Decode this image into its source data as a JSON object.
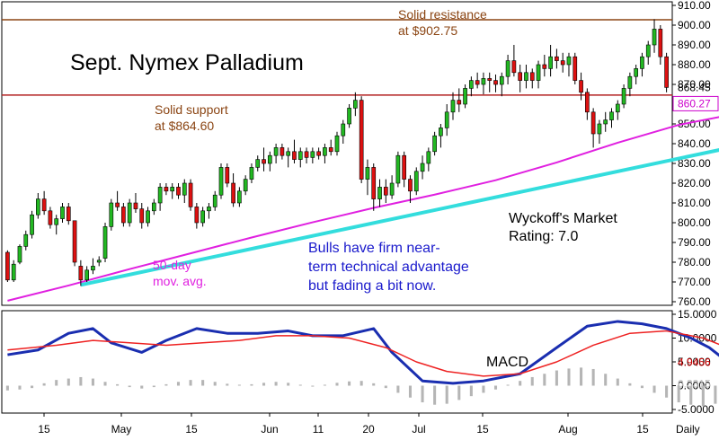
{
  "chart_data": [
    {
      "type": "candlestick",
      "title": "Sept. Nymex Palladium",
      "frequency_label": "Daily",
      "ylim": [
        760,
        910
      ],
      "yticks": [
        "760.00",
        "770.00",
        "780.00",
        "790.00",
        "800.00",
        "810.00",
        "820.00",
        "830.00",
        "840.00",
        "850.00",
        "860.00",
        "870.00",
        "880.00",
        "890.00",
        "900.00",
        "910.00"
      ],
      "x_tick_labels": [
        "15",
        "May",
        "15",
        "Jun",
        "11",
        "20",
        "Jul",
        "15",
        "Aug",
        "15"
      ],
      "price_tags": [
        {
          "label": "868.45",
          "value": 868.45,
          "color": "#000000",
          "boxed": false
        },
        {
          "label": "860.27",
          "value": 860.27,
          "color": "#cc00cc",
          "boxed": true
        }
      ],
      "annotations": {
        "resistance_line1": "Solid resistance",
        "resistance_line2": "at $902.75",
        "support_line1": "Solid support",
        "support_line2": "at $864.60",
        "ma_line1": "50-day",
        "ma_line2": "mov. avg.",
        "comment_line1": "Bulls have firm near-",
        "comment_line2": "term technical advantage",
        "comment_line3": "but fading a bit now.",
        "rating_line1": "Wyckoff's Market",
        "rating_line2": "Rating: 7.0"
      },
      "horizontal_lines": [
        {
          "name": "resistance",
          "value": 902.75,
          "color": "#8b4513"
        },
        {
          "name": "support",
          "value": 864.6,
          "color": "#b22222"
        }
      ],
      "series": [
        {
          "name": "50-day mov. avg.",
          "color": "#e020e0",
          "x": [
            0,
            10,
            20,
            30,
            40,
            50,
            60,
            70,
            80,
            90,
            100,
            110,
            120,
            133
          ],
          "y": [
            760.5,
            768.2,
            776.5,
            784.5,
            792.5,
            800.2,
            807.5,
            814.2,
            821.5,
            830.5,
            840.5,
            849.5,
            855.5,
            860.27
          ]
        },
        {
          "name": "uptrend line",
          "color": "#33dddd",
          "x": [
            12,
            133
          ],
          "y": [
            768.5,
            847.5
          ]
        }
      ],
      "candles": [
        {
          "o": 785,
          "h": 786,
          "l": 770,
          "c": 771
        },
        {
          "o": 771,
          "h": 781,
          "l": 770,
          "c": 779
        },
        {
          "o": 780,
          "h": 789,
          "l": 779,
          "c": 788
        },
        {
          "o": 788,
          "h": 796,
          "l": 786,
          "c": 794
        },
        {
          "o": 794,
          "h": 806,
          "l": 792,
          "c": 804
        },
        {
          "o": 804,
          "h": 815,
          "l": 802,
          "c": 812
        },
        {
          "o": 812,
          "h": 816,
          "l": 804,
          "c": 806
        },
        {
          "o": 806,
          "h": 808,
          "l": 797,
          "c": 799
        },
        {
          "o": 799,
          "h": 804,
          "l": 794,
          "c": 802
        },
        {
          "o": 802,
          "h": 810,
          "l": 800,
          "c": 808
        },
        {
          "o": 808,
          "h": 810,
          "l": 799,
          "c": 801
        },
        {
          "o": 801,
          "h": 800,
          "l": 778,
          "c": 780
        },
        {
          "o": 778,
          "h": 781,
          "l": 768,
          "c": 771
        },
        {
          "o": 771,
          "h": 778,
          "l": 770,
          "c": 776
        },
        {
          "o": 776,
          "h": 782,
          "l": 774,
          "c": 778
        },
        {
          "o": 780,
          "h": 783,
          "l": 778,
          "c": 781
        },
        {
          "o": 782,
          "h": 800,
          "l": 780,
          "c": 798
        },
        {
          "o": 798,
          "h": 812,
          "l": 796,
          "c": 810
        },
        {
          "o": 810,
          "h": 816,
          "l": 806,
          "c": 808
        },
        {
          "o": 808,
          "h": 810,
          "l": 798,
          "c": 800
        },
        {
          "o": 800,
          "h": 812,
          "l": 798,
          "c": 810
        },
        {
          "o": 810,
          "h": 815,
          "l": 805,
          "c": 807
        },
        {
          "o": 807,
          "h": 810,
          "l": 797,
          "c": 800
        },
        {
          "o": 800,
          "h": 808,
          "l": 798,
          "c": 806
        },
        {
          "o": 806,
          "h": 812,
          "l": 804,
          "c": 810
        },
        {
          "o": 810,
          "h": 820,
          "l": 806,
          "c": 818
        },
        {
          "o": 818,
          "h": 820,
          "l": 814,
          "c": 816
        },
        {
          "o": 816,
          "h": 820,
          "l": 812,
          "c": 818
        },
        {
          "o": 818,
          "h": 820,
          "l": 812,
          "c": 814
        },
        {
          "o": 814,
          "h": 822,
          "l": 810,
          "c": 820
        },
        {
          "o": 820,
          "h": 822,
          "l": 806,
          "c": 808
        },
        {
          "o": 808,
          "h": 810,
          "l": 797,
          "c": 800
        },
        {
          "o": 800,
          "h": 808,
          "l": 798,
          "c": 806
        },
        {
          "o": 806,
          "h": 810,
          "l": 802,
          "c": 808
        },
        {
          "o": 808,
          "h": 816,
          "l": 806,
          "c": 814
        },
        {
          "o": 814,
          "h": 830,
          "l": 812,
          "c": 828
        },
        {
          "o": 828,
          "h": 830,
          "l": 818,
          "c": 820
        },
        {
          "o": 820,
          "h": 825,
          "l": 808,
          "c": 810
        },
        {
          "o": 810,
          "h": 818,
          "l": 808,
          "c": 816
        },
        {
          "o": 816,
          "h": 824,
          "l": 814,
          "c": 822
        },
        {
          "o": 822,
          "h": 830,
          "l": 820,
          "c": 828
        },
        {
          "o": 828,
          "h": 834,
          "l": 826,
          "c": 832
        },
        {
          "o": 832,
          "h": 838,
          "l": 826,
          "c": 830
        },
        {
          "o": 830,
          "h": 836,
          "l": 826,
          "c": 834
        },
        {
          "o": 834,
          "h": 840,
          "l": 830,
          "c": 838
        },
        {
          "o": 838,
          "h": 840,
          "l": 832,
          "c": 834
        },
        {
          "o": 834,
          "h": 838,
          "l": 828,
          "c": 836
        },
        {
          "o": 836,
          "h": 842,
          "l": 830,
          "c": 832
        },
        {
          "o": 832,
          "h": 838,
          "l": 828,
          "c": 836
        },
        {
          "o": 836,
          "h": 838,
          "l": 830,
          "c": 833
        },
        {
          "o": 833,
          "h": 838,
          "l": 830,
          "c": 836
        },
        {
          "o": 836,
          "h": 838,
          "l": 832,
          "c": 834
        },
        {
          "o": 834,
          "h": 840,
          "l": 830,
          "c": 838
        },
        {
          "o": 838,
          "h": 842,
          "l": 834,
          "c": 836
        },
        {
          "o": 836,
          "h": 846,
          "l": 834,
          "c": 844
        },
        {
          "o": 844,
          "h": 852,
          "l": 840,
          "c": 850
        },
        {
          "o": 850,
          "h": 860,
          "l": 848,
          "c": 858
        },
        {
          "o": 858,
          "h": 866,
          "l": 854,
          "c": 862
        },
        {
          "o": 862,
          "h": 864,
          "l": 820,
          "c": 822
        },
        {
          "o": 822,
          "h": 832,
          "l": 814,
          "c": 828
        },
        {
          "o": 828,
          "h": 830,
          "l": 806,
          "c": 812
        },
        {
          "o": 812,
          "h": 822,
          "l": 808,
          "c": 818
        },
        {
          "o": 818,
          "h": 822,
          "l": 810,
          "c": 814
        },
        {
          "o": 814,
          "h": 824,
          "l": 812,
          "c": 820
        },
        {
          "o": 820,
          "h": 836,
          "l": 818,
          "c": 834
        },
        {
          "o": 834,
          "h": 836,
          "l": 818,
          "c": 822
        },
        {
          "o": 822,
          "h": 824,
          "l": 810,
          "c": 816
        },
        {
          "o": 816,
          "h": 828,
          "l": 814,
          "c": 826
        },
        {
          "o": 826,
          "h": 834,
          "l": 822,
          "c": 830
        },
        {
          "o": 830,
          "h": 838,
          "l": 826,
          "c": 836
        },
        {
          "o": 836,
          "h": 846,
          "l": 834,
          "c": 844
        },
        {
          "o": 844,
          "h": 850,
          "l": 838,
          "c": 848
        },
        {
          "o": 848,
          "h": 860,
          "l": 844,
          "c": 856
        },
        {
          "o": 856,
          "h": 866,
          "l": 852,
          "c": 862
        },
        {
          "o": 862,
          "h": 868,
          "l": 856,
          "c": 860
        },
        {
          "o": 860,
          "h": 870,
          "l": 858,
          "c": 868
        },
        {
          "o": 868,
          "h": 874,
          "l": 864,
          "c": 872
        },
        {
          "o": 872,
          "h": 876,
          "l": 868,
          "c": 870
        },
        {
          "o": 870,
          "h": 876,
          "l": 865,
          "c": 873
        },
        {
          "o": 873,
          "h": 876,
          "l": 866,
          "c": 872
        },
        {
          "o": 872,
          "h": 875,
          "l": 866,
          "c": 870
        },
        {
          "o": 870,
          "h": 876,
          "l": 864,
          "c": 874
        },
        {
          "o": 874,
          "h": 885,
          "l": 870,
          "c": 882
        },
        {
          "o": 882,
          "h": 890,
          "l": 874,
          "c": 876
        },
        {
          "o": 876,
          "h": 880,
          "l": 866,
          "c": 872
        },
        {
          "o": 872,
          "h": 880,
          "l": 868,
          "c": 876
        },
        {
          "o": 876,
          "h": 878,
          "l": 868,
          "c": 872
        },
        {
          "o": 872,
          "h": 882,
          "l": 868,
          "c": 880
        },
        {
          "o": 880,
          "h": 885,
          "l": 874,
          "c": 878
        },
        {
          "o": 878,
          "h": 890,
          "l": 874,
          "c": 884
        },
        {
          "o": 884,
          "h": 888,
          "l": 878,
          "c": 882
        },
        {
          "o": 882,
          "h": 886,
          "l": 876,
          "c": 880
        },
        {
          "o": 880,
          "h": 886,
          "l": 874,
          "c": 884
        },
        {
          "o": 884,
          "h": 886,
          "l": 870,
          "c": 872
        },
        {
          "o": 872,
          "h": 876,
          "l": 862,
          "c": 866
        },
        {
          "o": 866,
          "h": 868,
          "l": 852,
          "c": 856
        },
        {
          "o": 856,
          "h": 858,
          "l": 838,
          "c": 845
        },
        {
          "o": 845,
          "h": 852,
          "l": 840,
          "c": 850
        },
        {
          "o": 850,
          "h": 856,
          "l": 846,
          "c": 852
        },
        {
          "o": 852,
          "h": 858,
          "l": 848,
          "c": 856
        },
        {
          "o": 856,
          "h": 862,
          "l": 852,
          "c": 860
        },
        {
          "o": 860,
          "h": 870,
          "l": 858,
          "c": 868
        },
        {
          "o": 868,
          "h": 876,
          "l": 864,
          "c": 874
        },
        {
          "o": 874,
          "h": 880,
          "l": 870,
          "c": 878
        },
        {
          "o": 878,
          "h": 886,
          "l": 874,
          "c": 884
        },
        {
          "o": 884,
          "h": 892,
          "l": 880,
          "c": 890
        },
        {
          "o": 890,
          "h": 903,
          "l": 886,
          "c": 898
        },
        {
          "o": 898,
          "h": 900,
          "l": 880,
          "c": 884
        },
        {
          "o": 884,
          "h": 886,
          "l": 866,
          "c": 868.45
        }
      ]
    },
    {
      "type": "line",
      "title": "MACD",
      "ylim": [
        -5,
        15
      ],
      "yticks": [
        "-5.0000",
        "0.0000",
        "5.0000",
        "10.0000",
        "15.0000"
      ],
      "price_tags": [
        {
          "label": "4.9456",
          "value": 4.9456,
          "color": "#d00000"
        },
        {
          "label": "0.3315",
          "value": 0.3315,
          "color": "#bbbbbb"
        }
      ],
      "series": [
        {
          "name": "MACD line",
          "color": "#1a2eb0",
          "x": [
            0,
            5,
            10,
            14,
            17,
            22,
            26,
            31,
            36,
            41,
            46,
            50,
            55,
            60,
            63,
            68,
            73,
            78,
            84,
            90,
            95,
            100,
            104,
            108,
            112,
            115,
            118,
            122,
            127,
            131,
            135
          ],
          "y": [
            6.5,
            7.5,
            11,
            12,
            9,
            7,
            9.5,
            12,
            11,
            11,
            11.5,
            10.5,
            10.5,
            12,
            7,
            1,
            0.5,
            1,
            2.5,
            8,
            12.5,
            13.5,
            13,
            12,
            10,
            8,
            5,
            2,
            6.5,
            8,
            7
          ]
        },
        {
          "name": "Signal line",
          "color": "#ee2222",
          "x": [
            0,
            8,
            14,
            20,
            26,
            32,
            38,
            44,
            50,
            56,
            62,
            67,
            72,
            78,
            84,
            90,
            96,
            102,
            108,
            114,
            120,
            125,
            130,
            135
          ],
          "y": [
            7.5,
            8.5,
            9.5,
            9,
            8.5,
            9,
            9.5,
            10.5,
            10.5,
            10,
            8,
            5,
            3,
            2,
            2.5,
            5,
            8.5,
            11,
            11.5,
            10,
            7,
            4.5,
            4.5,
            5
          ]
        }
      ],
      "histogram": {
        "color": "#b5b5b5",
        "x": [
          0,
          2,
          4,
          6,
          8,
          10,
          12,
          14,
          16,
          18,
          20,
          22,
          24,
          26,
          28,
          30,
          32,
          34,
          36,
          38,
          40,
          42,
          44,
          46,
          48,
          50,
          52,
          54,
          56,
          58,
          60,
          62,
          64,
          66,
          68,
          70,
          72,
          74,
          76,
          78,
          80,
          82,
          84,
          86,
          88,
          90,
          92,
          94,
          96,
          98,
          100,
          102,
          104,
          106,
          108,
          110,
          112,
          114,
          116,
          118,
          120,
          122,
          124,
          126,
          128,
          130,
          132,
          134
        ],
        "y": [
          -1,
          -0.8,
          -0.5,
          0.5,
          1.2,
          1.5,
          1.8,
          1.5,
          0.8,
          0.3,
          -0.3,
          -0.6,
          -0.3,
          0.3,
          0.8,
          1.2,
          1.2,
          0.8,
          0.4,
          0.2,
          0.3,
          0.6,
          0.8,
          0.6,
          0.2,
          -0.2,
          0.2,
          0.6,
          0.9,
          1,
          0.5,
          -0.5,
          -1.5,
          -2.5,
          -3.5,
          -4,
          -3.8,
          -3,
          -2.2,
          -1.5,
          -0.8,
          0.2,
          1,
          1.8,
          2.5,
          3.2,
          3.6,
          3.8,
          3.5,
          2.5,
          1.5,
          0.5,
          -0.5,
          -1.5,
          -2.5,
          -3.5,
          -4,
          -4.3,
          -3.8,
          -2.5,
          -1.2,
          -0.5,
          0.3,
          0.8,
          1.2,
          1.5,
          0.8,
          0.3
        ]
      }
    }
  ]
}
